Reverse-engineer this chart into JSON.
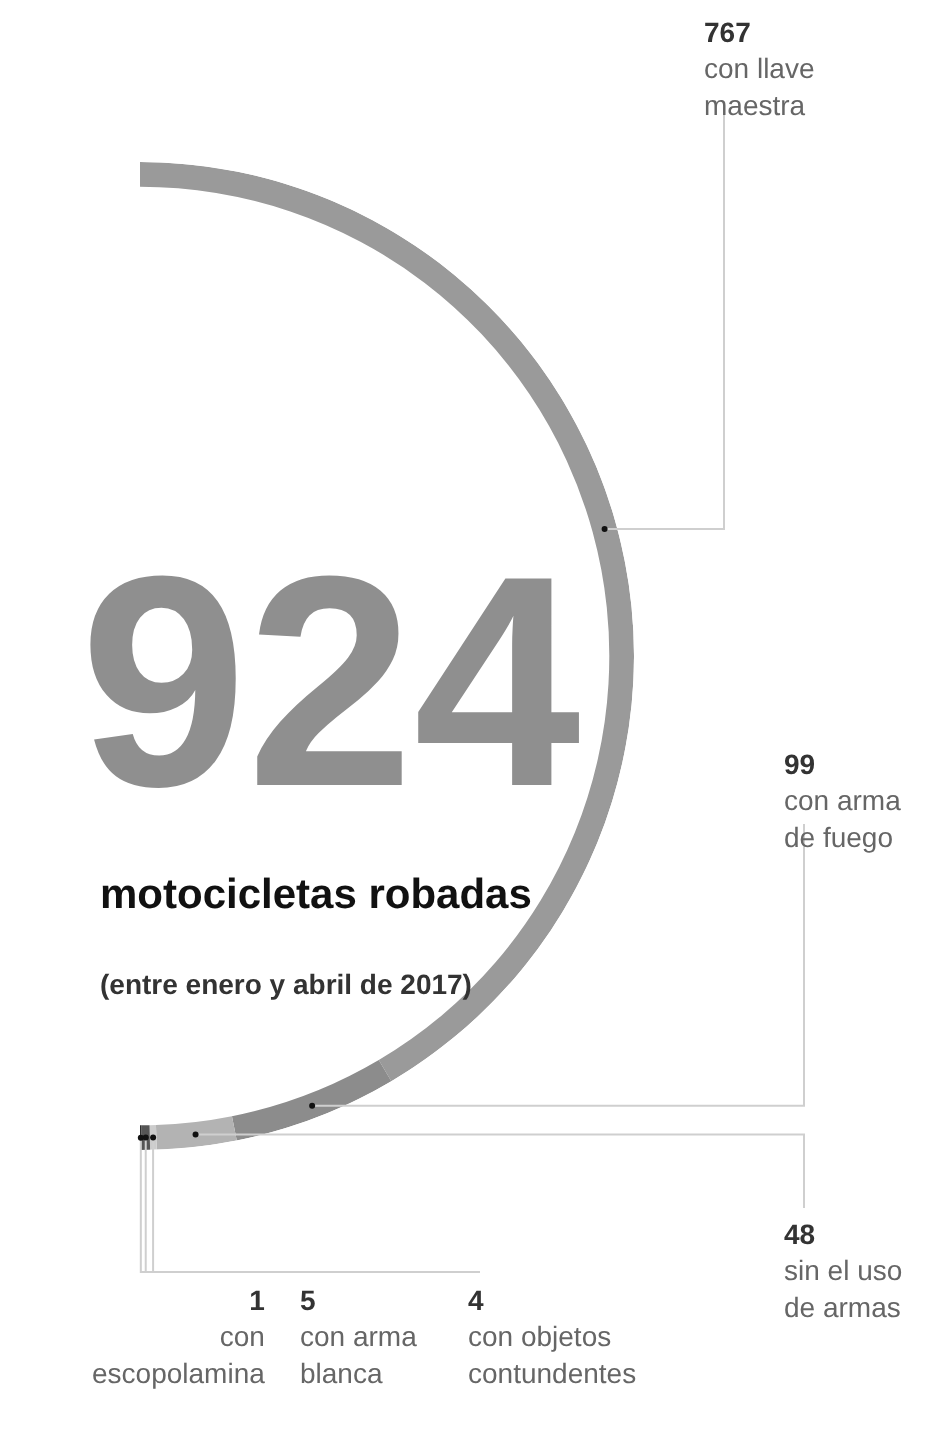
{
  "chart_data": {
    "type": "donut",
    "title": "924",
    "subtitle": "motocicletas robadas",
    "annotations": [
      "(entre enero y abril de 2017)"
    ],
    "categories": [
      "con llave maestra",
      "con arma de fuego",
      "sin el uso de armas",
      "con objetos contundentes",
      "con arma blanca",
      "con escopolamina"
    ],
    "values": [
      767,
      99,
      48,
      4,
      5,
      1
    ],
    "colors": [
      "#9a9a9a",
      "#8c8c8c",
      "#b3b3b3",
      "#cccccc",
      "#555555",
      "#2e2e2e"
    ],
    "data_labels": true,
    "legend": false
  }
}
